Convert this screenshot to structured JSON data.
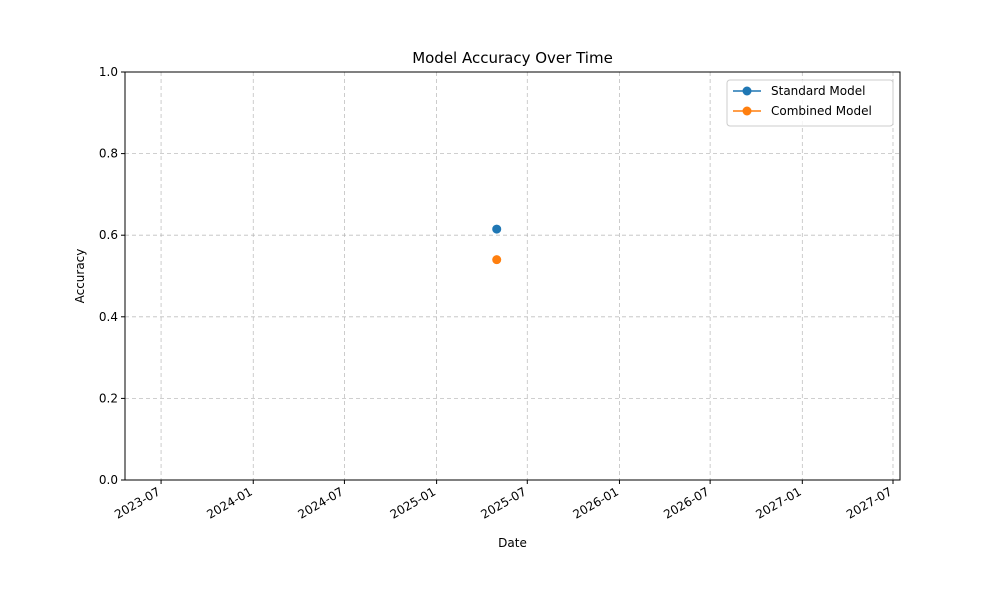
{
  "chart_data": {
    "type": "line",
    "title": "Model Accuracy Over Time",
    "xlabel": "Date",
    "ylabel": "Accuracy",
    "ylim": [
      0,
      1
    ],
    "xlim": [
      "2023-04-20",
      "2027-07-15"
    ],
    "x_ticks": [
      "2023-07",
      "2024-01",
      "2024-07",
      "2025-01",
      "2025-07",
      "2026-01",
      "2026-07",
      "2027-01",
      "2027-07"
    ],
    "y_ticks": [
      "0.0",
      "0.2",
      "0.4",
      "0.6",
      "0.8",
      "1.0"
    ],
    "grid": true,
    "legend_position": "top-right",
    "series": [
      {
        "name": "Standard Model",
        "color": "#1f77b4",
        "points": [
          {
            "x": "2025-05-01",
            "y": 0.615
          }
        ]
      },
      {
        "name": "Combined Model",
        "color": "#ff7f0e",
        "points": [
          {
            "x": "2025-05-01",
            "y": 0.54
          }
        ]
      }
    ]
  }
}
